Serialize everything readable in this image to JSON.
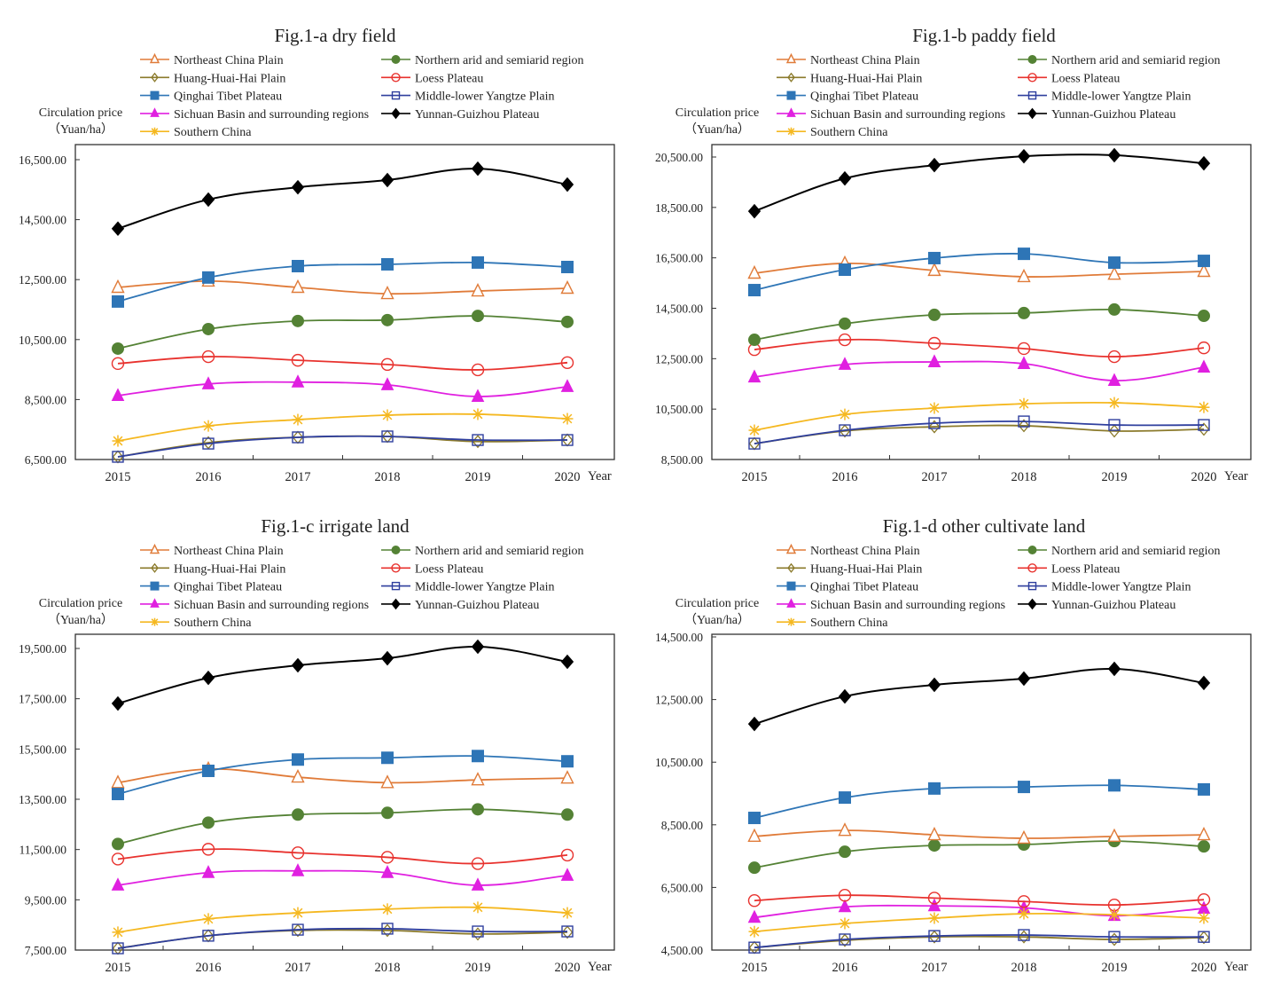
{
  "chart_data": [
    {
      "type": "line",
      "title": "Fig.1-a dry field",
      "ylabel": "Circulation price",
      "ylabel_unit": "（Yuan/ha）",
      "xlabel": "Year",
      "categories": [
        "2015",
        "2016",
        "2017",
        "2018",
        "2019",
        "2020"
      ],
      "ylim": [
        6500,
        16500
      ],
      "yticks": [
        6500,
        8500,
        10500,
        12500,
        14500,
        16500
      ],
      "ytick_labels": [
        "6,500.00",
        "8,500.00",
        "10,500.00",
        "12,500.00",
        "14,500.00",
        "16,500.00"
      ],
      "grid": false,
      "legend_position": "top",
      "series": [
        {
          "name": "Northeast China Plain",
          "values": [
            12240,
            12450,
            12240,
            12030,
            12120,
            12210
          ]
        },
        {
          "name": "Northern arid and semiarid region",
          "values": [
            10200,
            10850,
            11120,
            11150,
            11290,
            11090
          ]
        },
        {
          "name": "Huang-Huai-Hai Plain",
          "values": [
            6590,
            7060,
            7240,
            7270,
            7100,
            7150
          ]
        },
        {
          "name": "Loess Plateau",
          "values": [
            9700,
            9930,
            9810,
            9670,
            9490,
            9730
          ]
        },
        {
          "name": "Qinghai Tibet Plateau",
          "values": [
            11770,
            12570,
            12950,
            13010,
            13070,
            12920
          ]
        },
        {
          "name": "Middle-lower Yangtze Plain",
          "values": [
            6590,
            7030,
            7240,
            7270,
            7150,
            7150
          ]
        },
        {
          "name": "Sichuan Basin and surrounding regions",
          "values": [
            8630,
            9020,
            9080,
            8990,
            8600,
            8930
          ]
        },
        {
          "name": "Yunnan-Guizhou Plateau",
          "values": [
            14200,
            15170,
            15580,
            15820,
            16200,
            15670
          ]
        },
        {
          "name": "Southern China",
          "values": [
            7120,
            7620,
            7830,
            7980,
            8010,
            7860
          ]
        }
      ]
    },
    {
      "type": "line",
      "title": "Fig.1-b paddy field",
      "ylabel": "Circulation price",
      "ylabel_unit": "（Yuan/ha）",
      "xlabel": "Year",
      "categories": [
        "2015",
        "2016",
        "2017",
        "2018",
        "2019",
        "2020"
      ],
      "ylim": [
        8500,
        20500
      ],
      "yticks": [
        8500,
        10500,
        12500,
        14500,
        16500,
        18500,
        20500
      ],
      "ytick_labels": [
        "8,500.00",
        "10,500.00",
        "12,500.00",
        "14,500.00",
        "16,500.00",
        "18,500.00",
        "20,500.00"
      ],
      "grid": false,
      "legend_position": "top",
      "series": [
        {
          "name": "Northeast China Plain",
          "values": [
            15890,
            16280,
            16000,
            15750,
            15850,
            15960
          ]
        },
        {
          "name": "Northern arid and semiarid region",
          "values": [
            13250,
            13890,
            14240,
            14310,
            14450,
            14200
          ]
        },
        {
          "name": "Huang-Huai-Hai Plain",
          "values": [
            9130,
            9630,
            9800,
            9840,
            9630,
            9700
          ]
        },
        {
          "name": "Loess Plateau",
          "values": [
            12860,
            13250,
            13110,
            12900,
            12580,
            12930
          ]
        },
        {
          "name": "Qinghai Tibet Plateau",
          "values": [
            15220,
            16030,
            16490,
            16660,
            16310,
            16380
          ]
        },
        {
          "name": "Middle-lower Yangtze Plain",
          "values": [
            9130,
            9660,
            9940,
            10010,
            9870,
            9870
          ]
        },
        {
          "name": "Sichuan Basin and surrounding regions",
          "values": [
            11770,
            12270,
            12370,
            12300,
            11630,
            12160
          ]
        },
        {
          "name": "Yunnan-Guizhou Plateau",
          "values": [
            18350,
            19650,
            20180,
            20530,
            20570,
            20250
          ]
        },
        {
          "name": "Southern China",
          "values": [
            9660,
            10290,
            10540,
            10710,
            10750,
            10570
          ]
        }
      ]
    },
    {
      "type": "line",
      "title": "Fig.1-c irrigate land",
      "ylabel": "Circulation price",
      "ylabel_unit": "（Yuan/ha）",
      "xlabel": "Year",
      "categories": [
        "2015",
        "2016",
        "2017",
        "2018",
        "2019",
        "2020"
      ],
      "ylim": [
        7500,
        19500
      ],
      "yticks": [
        7500,
        9500,
        11500,
        13500,
        15500,
        17500,
        19500
      ],
      "ytick_labels": [
        "7,500.00",
        "9,500.00",
        "11,500.00",
        "13,500.00",
        "15,500.00",
        "17,500.00",
        "19,500.00"
      ],
      "grid": false,
      "legend_position": "top",
      "series": [
        {
          "name": "Northeast China Plain",
          "values": [
            14160,
            14700,
            14380,
            14160,
            14270,
            14340
          ]
        },
        {
          "name": "Northern arid and semiarid region",
          "values": [
            11720,
            12570,
            12890,
            12960,
            13100,
            12890
          ]
        },
        {
          "name": "Huang-Huai-Hai Plain",
          "values": [
            7570,
            8070,
            8280,
            8280,
            8140,
            8210
          ]
        },
        {
          "name": "Loess Plateau",
          "values": [
            11120,
            11510,
            11370,
            11190,
            10940,
            11280
          ]
        },
        {
          "name": "Qinghai Tibet Plateau",
          "values": [
            13710,
            14630,
            15080,
            15150,
            15220,
            15010
          ]
        },
        {
          "name": "Middle-lower Yangtze Plain",
          "values": [
            7570,
            8070,
            8310,
            8350,
            8240,
            8240
          ]
        },
        {
          "name": "Sichuan Basin and surrounding regions",
          "values": [
            10080,
            10580,
            10650,
            10580,
            10080,
            10470
          ]
        },
        {
          "name": "Yunnan-Guizhou Plateau",
          "values": [
            17310,
            18330,
            18830,
            19110,
            19570,
            18970
          ]
        },
        {
          "name": "Southern China",
          "values": [
            8210,
            8740,
            8980,
            9130,
            9200,
            8980
          ]
        }
      ]
    },
    {
      "type": "line",
      "title": "Fig.1-d other cultivate land",
      "ylabel": "Circulation price",
      "ylabel_unit": "（Yuan/ha）",
      "xlabel": "Year",
      "categories": [
        "2015",
        "2016",
        "2017",
        "2018",
        "2019",
        "2020"
      ],
      "ylim": [
        4500,
        14500
      ],
      "yticks": [
        4500,
        6500,
        8500,
        10500,
        12500,
        14500
      ],
      "ytick_labels": [
        "4,500.00",
        "6,500.00",
        "8,500.00",
        "10,500.00",
        "12,500.00",
        "14,500.00"
      ],
      "grid": false,
      "legend_position": "top",
      "series": [
        {
          "name": "Northeast China Plain",
          "values": [
            8130,
            8320,
            8180,
            8070,
            8130,
            8180
          ]
        },
        {
          "name": "Northern arid and semiarid region",
          "values": [
            7130,
            7640,
            7840,
            7870,
            7980,
            7810
          ]
        },
        {
          "name": "Huang-Huai-Hai Plain",
          "values": [
            4580,
            4810,
            4920,
            4920,
            4840,
            4900
          ]
        },
        {
          "name": "Loess Plateau",
          "values": [
            6080,
            6250,
            6160,
            6050,
            5940,
            6110
          ]
        },
        {
          "name": "Qinghai Tibet Plateau",
          "values": [
            8720,
            9370,
            9660,
            9710,
            9760,
            9630
          ]
        },
        {
          "name": "Middle-lower Yangtze Plain",
          "values": [
            4580,
            4840,
            4950,
            4980,
            4920,
            4920
          ]
        },
        {
          "name": "Sichuan Basin and surrounding regions",
          "values": [
            5540,
            5880,
            5910,
            5850,
            5600,
            5830
          ]
        },
        {
          "name": "Yunnan-Guizhou Plateau",
          "values": [
            11720,
            12600,
            12970,
            13170,
            13480,
            13030
          ]
        },
        {
          "name": "Southern China",
          "values": [
            5090,
            5350,
            5520,
            5660,
            5630,
            5520
          ]
        }
      ]
    }
  ],
  "series_style": [
    {
      "color": "#E07B39",
      "marker": "triangle-open"
    },
    {
      "color": "#548235",
      "marker": "circle-filled"
    },
    {
      "color": "#8B7A2B",
      "marker": "diamond-open"
    },
    {
      "color": "#E8322E",
      "marker": "circle-open"
    },
    {
      "color": "#2E75B6",
      "marker": "square-filled"
    },
    {
      "color": "#2F3F9E",
      "marker": "square-open"
    },
    {
      "color": "#E020E0",
      "marker": "triangle-filled"
    },
    {
      "color": "#000000",
      "marker": "diamond-filled"
    },
    {
      "color": "#F5B820",
      "marker": "asterisk"
    }
  ]
}
